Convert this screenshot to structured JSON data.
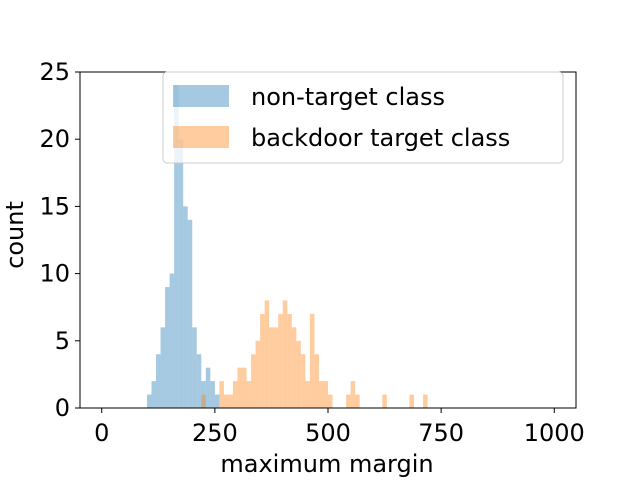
{
  "chart_data": {
    "type": "histogram",
    "title": "",
    "xlabel": "maximum margin",
    "ylabel": "count",
    "xlim": [
      -48,
      1048
    ],
    "ylim": [
      0,
      25
    ],
    "xticks": [
      0,
      250,
      500,
      750,
      1000
    ],
    "xtick_labels": [
      "0",
      "250",
      "500",
      "750",
      "1000"
    ],
    "yticks": [
      0,
      5,
      10,
      15,
      20,
      25
    ],
    "ytick_labels": [
      "0",
      "5",
      "10",
      "15",
      "20",
      "25"
    ],
    "grid": false,
    "legend_position": "top-right",
    "bin_width": 10,
    "series": [
      {
        "name": "non-target class",
        "color": "#1f77b4",
        "alpha": 0.4,
        "bins": [
          [
            100,
            1
          ],
          [
            110,
            2
          ],
          [
            120,
            4
          ],
          [
            130,
            6
          ],
          [
            140,
            9
          ],
          [
            150,
            10
          ],
          [
            160,
            24
          ],
          [
            170,
            20
          ],
          [
            180,
            15
          ],
          [
            190,
            14
          ],
          [
            200,
            6
          ],
          [
            210,
            4
          ],
          [
            220,
            2
          ],
          [
            230,
            3
          ],
          [
            240,
            2
          ],
          [
            250,
            1
          ]
        ]
      },
      {
        "name": "backdoor target class",
        "color": "#ff7f0e",
        "alpha": 0.4,
        "bins": [
          [
            220,
            1
          ],
          [
            260,
            2
          ],
          [
            270,
            1
          ],
          [
            280,
            1
          ],
          [
            290,
            2
          ],
          [
            300,
            3
          ],
          [
            310,
            3
          ],
          [
            320,
            2
          ],
          [
            330,
            4
          ],
          [
            340,
            5
          ],
          [
            350,
            7
          ],
          [
            360,
            8
          ],
          [
            370,
            6
          ],
          [
            380,
            6
          ],
          [
            390,
            7
          ],
          [
            400,
            8
          ],
          [
            410,
            7
          ],
          [
            420,
            6
          ],
          [
            430,
            5
          ],
          [
            440,
            4
          ],
          [
            450,
            2
          ],
          [
            460,
            7
          ],
          [
            470,
            4
          ],
          [
            480,
            2
          ],
          [
            490,
            2
          ],
          [
            500,
            1
          ],
          [
            540,
            1
          ],
          [
            550,
            2
          ],
          [
            560,
            1
          ],
          [
            620,
            1
          ],
          [
            680,
            1
          ],
          [
            710,
            1
          ]
        ]
      }
    ]
  }
}
